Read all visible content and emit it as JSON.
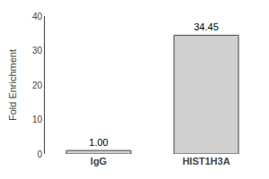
{
  "chart_data": {
    "type": "bar",
    "ylabel": "Fold Enrichment",
    "categories": [
      "IgG",
      "HIST1H3A"
    ],
    "values": [
      1.0,
      34.45
    ],
    "value_labels": [
      "1.00",
      "34.45"
    ],
    "data_labels": true,
    "color": "#d0d0d0",
    "ylim": [
      0,
      40
    ],
    "yticks": [
      0,
      10,
      20,
      30,
      40
    ],
    "grid": false
  }
}
